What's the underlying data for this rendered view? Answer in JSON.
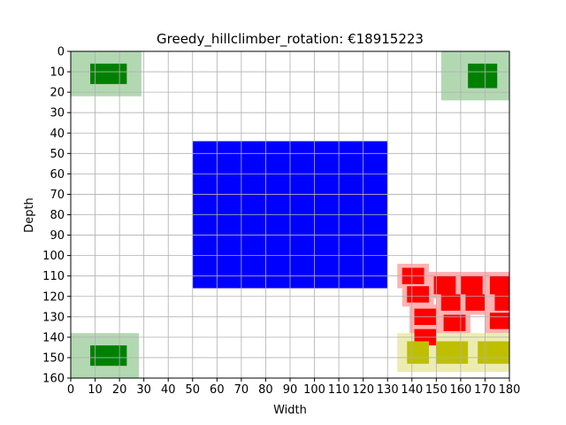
{
  "chart_data": {
    "type": "scatter",
    "title": "Greedy_hillclimber_rotation: €18915223",
    "xlabel": "Width",
    "ylabel": "Depth",
    "xlim": [
      0,
      180
    ],
    "ylim": [
      0,
      160
    ],
    "y_inverted": true,
    "grid": true,
    "x_ticks": [
      0,
      10,
      20,
      30,
      40,
      50,
      60,
      70,
      80,
      90,
      100,
      110,
      120,
      130,
      140,
      150,
      160,
      170,
      180
    ],
    "y_ticks": [
      0,
      10,
      20,
      30,
      40,
      50,
      60,
      70,
      80,
      90,
      100,
      110,
      120,
      130,
      140,
      150,
      160
    ],
    "colors": {
      "water": "#0000ff",
      "playground": "#008000",
      "playground_zone": "#b2d8b2",
      "red": "#ff0000",
      "red_zone": "#ffb2b2",
      "yellow": "#bfbf00",
      "yellow_zone": "#ececb2"
    },
    "areas": [
      {
        "kind": "water",
        "x0": 50,
        "x1": 130,
        "y0": 44,
        "y1": 116
      },
      {
        "kind": "playground",
        "zone": [
          0,
          29,
          0,
          22
        ],
        "core": [
          8,
          23,
          6,
          16
        ]
      },
      {
        "kind": "playground",
        "zone": [
          152,
          180,
          0,
          24
        ],
        "core": [
          163,
          175,
          6,
          18
        ]
      },
      {
        "kind": "playground",
        "zone": [
          0,
          28,
          138,
          160
        ],
        "core": [
          8,
          23,
          144,
          154
        ]
      }
    ],
    "houses": [
      {
        "type": "red",
        "x0": 136,
        "x1": 145,
        "y0": 106,
        "y1": 114,
        "margin": 2
      },
      {
        "type": "red",
        "x0": 138,
        "x1": 147,
        "y0": 115,
        "y1": 123,
        "margin": 2
      },
      {
        "type": "red",
        "x0": 149,
        "x1": 158,
        "y0": 110,
        "y1": 119,
        "margin": 2
      },
      {
        "type": "red",
        "x0": 160,
        "x1": 169,
        "y0": 110,
        "y1": 119,
        "margin": 2
      },
      {
        "type": "red",
        "x0": 172,
        "x1": 181,
        "y0": 110,
        "y1": 119,
        "margin": 2
      },
      {
        "type": "red",
        "x0": 152,
        "x1": 160,
        "y0": 119,
        "y1": 127,
        "margin": 2
      },
      {
        "type": "red",
        "x0": 162,
        "x1": 170,
        "y0": 119,
        "y1": 127,
        "margin": 2
      },
      {
        "type": "red",
        "x0": 174,
        "x1": 182,
        "y0": 119,
        "y1": 127,
        "margin": 2
      },
      {
        "type": "red",
        "x0": 141,
        "x1": 150,
        "y0": 126,
        "y1": 134,
        "margin": 2
      },
      {
        "type": "red",
        "x0": 153,
        "x1": 162,
        "y0": 129,
        "y1": 137,
        "margin": 2
      },
      {
        "type": "red",
        "x0": 172,
        "x1": 181,
        "y0": 128,
        "y1": 136,
        "margin": 2
      },
      {
        "type": "red",
        "x0": 141,
        "x1": 150,
        "y0": 136,
        "y1": 144,
        "margin": 2
      },
      {
        "type": "yellow",
        "x0": 138,
        "x1": 147,
        "y0": 142,
        "y1": 153,
        "margin": 4
      },
      {
        "type": "yellow",
        "x0": 150,
        "x1": 163,
        "y0": 142,
        "y1": 153,
        "margin": 4
      },
      {
        "type": "yellow",
        "x0": 167,
        "x1": 180,
        "y0": 142,
        "y1": 153,
        "margin": 4
      }
    ]
  }
}
